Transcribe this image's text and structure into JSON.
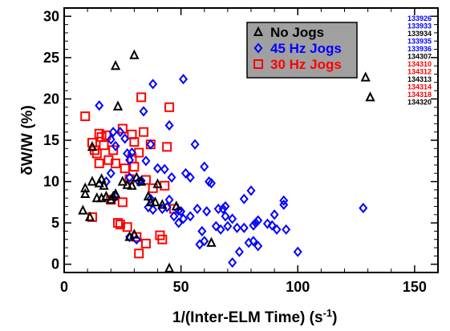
{
  "chart_data": {
    "type": "scatter",
    "xlabel_main": "1/(Inter-ELM Time) (s",
    "xlabel_sup": "-1",
    "xlabel_close": ")",
    "ylabel": "δW/W (%)",
    "xlim": [
      0,
      160
    ],
    "ylim": [
      0,
      30
    ],
    "xticks": [
      "0",
      "50",
      "100",
      "150"
    ],
    "xtick_values": [
      0,
      50,
      100,
      150
    ],
    "yticks": [
      "0",
      "5",
      "10",
      "15",
      "20",
      "25",
      "30"
    ],
    "ytick_values": [
      0,
      5,
      10,
      15,
      20,
      25,
      30
    ],
    "grid": false,
    "legend_position": "top-right",
    "legend_background": "#a0a0a0",
    "series": [
      {
        "name": "No Jogs",
        "marker": "triangle",
        "color": "#000000",
        "points": [
          [
            8,
            6.5
          ],
          [
            9,
            8.5
          ],
          [
            9,
            9.2
          ],
          [
            11,
            5.7
          ],
          [
            12,
            14.2
          ],
          [
            12,
            10
          ],
          [
            14,
            8
          ],
          [
            15,
            9.8
          ],
          [
            16,
            8
          ],
          [
            16,
            10.3
          ],
          [
            17,
            9.5
          ],
          [
            18,
            8.2
          ],
          [
            20,
            7.8
          ],
          [
            21,
            8.2
          ],
          [
            22,
            8.5
          ],
          [
            22,
            24
          ],
          [
            23,
            19.1
          ],
          [
            25,
            10
          ],
          [
            27,
            9.6
          ],
          [
            28,
            3.3
          ],
          [
            29,
            9.5
          ],
          [
            30,
            25.3
          ],
          [
            30,
            3.6
          ],
          [
            31,
            10.5
          ],
          [
            33,
            10
          ],
          [
            36,
            8.2
          ],
          [
            37,
            7.5
          ],
          [
            39,
            7.5
          ],
          [
            40,
            9.7
          ],
          [
            42,
            7.2
          ],
          [
            45,
            -0.5
          ],
          [
            48,
            7
          ],
          [
            63,
            2.6
          ],
          [
            129,
            22.6
          ],
          [
            131,
            20.2
          ]
        ]
      },
      {
        "name": "45 Hz Jogs",
        "marker": "diamond",
        "color": "#0000ff",
        "points": [
          [
            15,
            19.2
          ],
          [
            18,
            10
          ],
          [
            20,
            11
          ],
          [
            20,
            15.1
          ],
          [
            21,
            16
          ],
          [
            22,
            14.3
          ],
          [
            22,
            8.2
          ],
          [
            24,
            16
          ],
          [
            26,
            15.2
          ],
          [
            27,
            13.4
          ],
          [
            28,
            10.5
          ],
          [
            28,
            12.6
          ],
          [
            28,
            3.3
          ],
          [
            29,
            13.5
          ],
          [
            31,
            3
          ],
          [
            32,
            10
          ],
          [
            33,
            10.1
          ],
          [
            34,
            18.5
          ],
          [
            35,
            12.5
          ],
          [
            36,
            6.9
          ],
          [
            37,
            7.9
          ],
          [
            37,
            14.5
          ],
          [
            38,
            6.6
          ],
          [
            38,
            21.8
          ],
          [
            40,
            11.6
          ],
          [
            42,
            6.7
          ],
          [
            43,
            11.5
          ],
          [
            44,
            6.9
          ],
          [
            45,
            16.8
          ],
          [
            45,
            7.8
          ],
          [
            46,
            10.5
          ],
          [
            47,
            5.8
          ],
          [
            49,
            6.5
          ],
          [
            49,
            5
          ],
          [
            50,
            6.4
          ],
          [
            51,
            22.4
          ],
          [
            51,
            5.5
          ],
          [
            52,
            11
          ],
          [
            54,
            5.8
          ],
          [
            54,
            10.5
          ],
          [
            56,
            14.5
          ],
          [
            57,
            6.7
          ],
          [
            58,
            2.4
          ],
          [
            59,
            4
          ],
          [
            60,
            2.8
          ],
          [
            60,
            11.8
          ],
          [
            61,
            6.4
          ],
          [
            62,
            10
          ],
          [
            63,
            9.8
          ],
          [
            65,
            4.6
          ],
          [
            66,
            6.7
          ],
          [
            67,
            4.2
          ],
          [
            68,
            6.7
          ],
          [
            69,
            5.8
          ],
          [
            69,
            7
          ],
          [
            70,
            4.6
          ],
          [
            72,
            0.2
          ],
          [
            72,
            5.5
          ],
          [
            74,
            4.4
          ],
          [
            75,
            1.5
          ],
          [
            77,
            7.9
          ],
          [
            77,
            4.4
          ],
          [
            79,
            2.6
          ],
          [
            80,
            8.9
          ],
          [
            81,
            4.7
          ],
          [
            81,
            2.8
          ],
          [
            82,
            5
          ],
          [
            83,
            2.2
          ],
          [
            83,
            5.3
          ],
          [
            87,
            4.9
          ],
          [
            89,
            4.7
          ],
          [
            90,
            6
          ],
          [
            91,
            4.2
          ],
          [
            94,
            7.2
          ],
          [
            94,
            7.7
          ],
          [
            95,
            4.2
          ],
          [
            100,
            1.5
          ],
          [
            128,
            6.8
          ]
        ]
      },
      {
        "name": "30 Hz Jogs",
        "marker": "square",
        "color": "#ff0000",
        "points": [
          [
            9,
            17.9
          ],
          [
            12,
            14.7
          ],
          [
            12,
            5.7
          ],
          [
            13,
            13.8
          ],
          [
            14,
            13.4
          ],
          [
            15,
            15.8
          ],
          [
            15,
            12.2
          ],
          [
            16,
            15.4
          ],
          [
            17,
            14.4
          ],
          [
            18,
            15.6
          ],
          [
            19,
            12.6
          ],
          [
            20,
            7.8
          ],
          [
            21,
            13.8
          ],
          [
            22,
            12.2
          ],
          [
            23,
            5
          ],
          [
            24,
            4.8
          ],
          [
            25,
            7.5
          ],
          [
            25,
            16.4
          ],
          [
            26,
            11.6
          ],
          [
            27,
            4.5
          ],
          [
            28,
            10.3
          ],
          [
            29,
            15.7
          ],
          [
            29,
            12.8
          ],
          [
            30,
            11.8
          ],
          [
            30,
            14.8
          ],
          [
            31,
            3.3
          ],
          [
            32,
            1.3
          ],
          [
            32,
            13.5
          ],
          [
            33,
            20.2
          ],
          [
            34,
            16
          ],
          [
            35,
            10.2
          ],
          [
            35,
            2.5
          ],
          [
            37,
            14.5
          ],
          [
            38,
            9.2
          ],
          [
            41,
            3.5
          ],
          [
            42,
            3
          ],
          [
            43,
            9.5
          ],
          [
            44,
            14.2
          ],
          [
            45,
            19
          ],
          [
            47,
            6.7
          ]
        ]
      }
    ],
    "shot_labels": [
      {
        "text": "133926",
        "color": "#0000ff"
      },
      {
        "text": "133933",
        "color": "#0000ff"
      },
      {
        "text": "133934",
        "color": "#000000"
      },
      {
        "text": "133935",
        "color": "#0000ff"
      },
      {
        "text": "133936",
        "color": "#0000ff"
      },
      {
        "text": "134307",
        "color": "#000000"
      },
      {
        "text": "134310",
        "color": "#ff0000"
      },
      {
        "text": "134312",
        "color": "#ff0000"
      },
      {
        "text": "134313",
        "color": "#000000"
      },
      {
        "text": "134314",
        "color": "#ff0000"
      },
      {
        "text": "134318",
        "color": "#ff0000"
      },
      {
        "text": "134320",
        "color": "#000000"
      }
    ]
  }
}
